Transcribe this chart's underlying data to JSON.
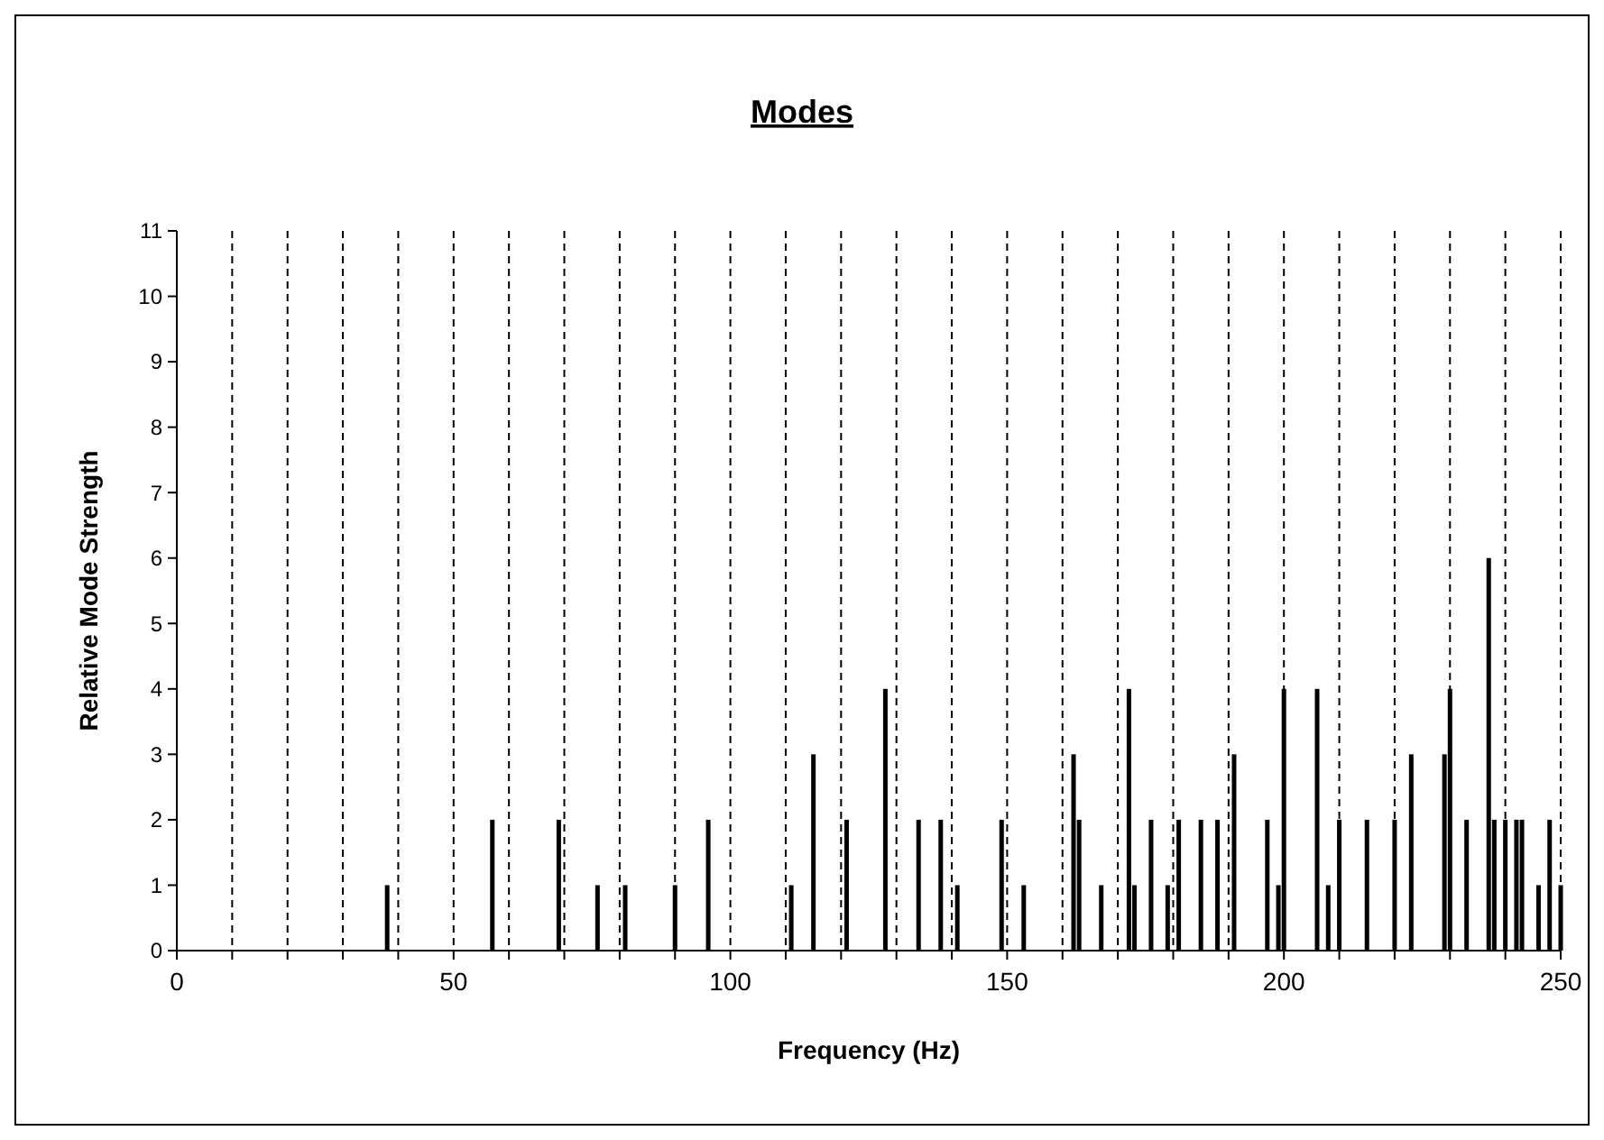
{
  "chart_data": {
    "type": "bar",
    "title": "Modes",
    "xlabel": "Frequency (Hz)",
    "ylabel": "Relative Mode Strength",
    "x": [
      38,
      57,
      69,
      76,
      81,
      90,
      96,
      111,
      115,
      121,
      128,
      134,
      138,
      141,
      149,
      153,
      162,
      163,
      167,
      172,
      173,
      176,
      179,
      181,
      185,
      188,
      191,
      197,
      199,
      200,
      206,
      208,
      210,
      215,
      220,
      223,
      229,
      230,
      233,
      237,
      238,
      240,
      242,
      243,
      246,
      248,
      250
    ],
    "values": [
      1,
      2,
      2,
      1,
      1,
      1,
      2,
      1,
      3,
      2,
      4,
      2,
      2,
      1,
      2,
      1,
      3,
      2,
      1,
      4,
      1,
      2,
      1,
      2,
      2,
      2,
      3,
      2,
      1,
      4,
      4,
      1,
      2,
      2,
      2,
      3,
      3,
      4,
      2,
      6,
      2,
      2,
      2,
      2,
      1,
      2,
      1
    ],
    "color": "#000000",
    "xlim": [
      0,
      250
    ],
    "xticks": [
      0,
      {
        "value": 10,
        "label": null
      },
      {
        "value": 20,
        "label": null
      },
      {
        "value": 30,
        "label": null
      },
      {
        "value": 40,
        "label": null
      },
      50,
      {
        "value": 60,
        "label": null
      },
      {
        "value": 70,
        "label": null
      },
      {
        "value": 80,
        "label": null
      },
      {
        "value": 90,
        "label": null
      },
      100,
      {
        "value": 110,
        "label": null
      },
      {
        "value": 120,
        "label": null
      },
      {
        "value": 130,
        "label": null
      },
      {
        "value": 140,
        "label": null
      },
      150,
      {
        "value": 160,
        "label": null
      },
      {
        "value": 170,
        "label": null
      },
      {
        "value": 180,
        "label": null
      },
      {
        "value": 190,
        "label": null
      },
      200,
      {
        "value": 210,
        "label": null
      },
      {
        "value": 220,
        "label": null
      },
      {
        "value": 230,
        "label": null
      },
      {
        "value": 240,
        "label": null
      },
      250
    ],
    "ylim": [
      0,
      11
    ],
    "yticks": [
      0,
      1,
      2,
      3,
      4,
      5,
      6,
      7,
      8,
      9,
      10,
      11
    ],
    "grid": "x"
  }
}
